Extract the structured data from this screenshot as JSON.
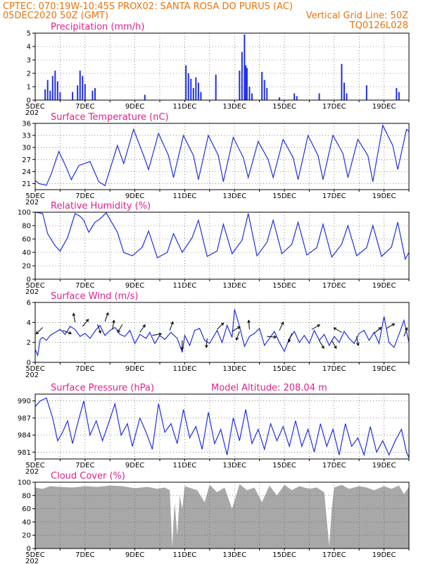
{
  "header": {
    "line1_left": "CPTEC:  070:19W-10:45S   PROX02: SANTA ROSA DO PURUS (AC)",
    "line2_left": "05DEC2020 50Z (GMT)",
    "line2_right": "Vertical Grid Line: 50Z",
    "line3_right": "TQ0126L028"
  },
  "colors": {
    "header": "#e8740c",
    "panel_title": "#e0208c",
    "series": "#2030e0",
    "cloud": "#a8a8a8"
  },
  "x_labels": [
    "5DEC",
    "7DEC",
    "9DEC",
    "11DEC",
    "13DEC",
    "15DEC",
    "17DEC",
    "19DEC"
  ],
  "x_prefix": "202",
  "chart_data": [
    {
      "type": "bar",
      "title": "Precipitation (mm/h)",
      "x_start_day": 5,
      "x_end_day": 20,
      "ylim": [
        0,
        5
      ],
      "yticks": [
        0,
        1,
        2,
        3,
        4,
        5
      ],
      "grid": true,
      "series": [
        {
          "x": [
            5.4,
            5.5,
            5.6,
            5.7,
            5.8,
            5.9,
            6.0,
            6.5,
            6.7,
            6.8,
            6.9,
            7.0,
            7.3,
            7.4,
            9.4,
            11.05,
            11.15,
            11.25,
            11.35,
            11.45,
            11.55,
            11.65,
            12.25,
            13.2,
            13.3,
            13.4,
            13.45,
            13.5,
            13.6,
            13.7,
            14.1,
            14.2,
            14.3,
            14.8,
            15.4,
            15.5,
            16.4,
            17.3,
            17.4,
            17.5,
            18.3,
            19.5,
            19.6
          ],
          "values": [
            0.8,
            1.5,
            0.7,
            1.8,
            2.2,
            1.4,
            0.6,
            0.6,
            1.1,
            2.2,
            1.8,
            1.2,
            0.7,
            0.9,
            0.4,
            2.6,
            2.0,
            1.6,
            0.9,
            1.7,
            1.3,
            0.6,
            1.9,
            2.2,
            3.6,
            4.9,
            2.6,
            2.4,
            1.0,
            0.5,
            2.1,
            1.5,
            0.9,
            0.2,
            0.5,
            0.3,
            0.5,
            2.7,
            1.3,
            0.5,
            1.1,
            0.9,
            0.6
          ]
        }
      ]
    },
    {
      "type": "line",
      "title": "Surface Temperature (nC)",
      "x_start_day": 5,
      "x_end_day": 20,
      "ylim": [
        19.5,
        36
      ],
      "yticks": [
        21,
        24,
        27,
        30,
        33,
        36
      ],
      "grid": true,
      "series": [
        {
          "x": [
            5.0,
            5.15,
            5.45,
            5.65,
            5.95,
            6.25,
            6.45,
            6.75,
            7.2,
            7.55,
            7.8,
            7.95,
            8.3,
            8.55,
            8.95,
            9.35,
            9.55,
            9.95,
            10.35,
            10.55,
            10.95,
            11.35,
            11.55,
            11.95,
            12.35,
            12.55,
            12.95,
            13.35,
            13.55,
            13.95,
            14.35,
            14.55,
            14.95,
            15.35,
            15.55,
            15.95,
            16.35,
            16.55,
            16.95,
            17.35,
            17.55,
            17.95,
            18.35,
            18.55,
            18.95,
            19.35,
            19.55,
            19.9,
            20.0
          ],
          "values": [
            21.8,
            21.0,
            20.6,
            23.5,
            29.0,
            25.0,
            22.0,
            25.5,
            26.5,
            21.5,
            20.5,
            23.5,
            30.5,
            26.0,
            34.5,
            28.0,
            24.5,
            33.5,
            28.0,
            22.5,
            33.0,
            28.0,
            22.0,
            33.0,
            28.0,
            21.5,
            32.5,
            27.5,
            22.5,
            31.5,
            27.0,
            22.5,
            32.0,
            27.5,
            22.0,
            33.0,
            28.0,
            22.0,
            33.0,
            28.5,
            22.5,
            32.0,
            28.0,
            21.5,
            35.5,
            30.5,
            24.5,
            34.5,
            34.0
          ]
        }
      ]
    },
    {
      "type": "line",
      "title": "Relative Humidity (%)",
      "x_start_day": 5,
      "x_end_day": 20,
      "ylim": [
        0,
        100
      ],
      "yticks": [
        0,
        20,
        40,
        60,
        80,
        100
      ],
      "grid": true,
      "series": [
        {
          "x": [
            5.0,
            5.15,
            5.3,
            5.5,
            5.8,
            6.0,
            6.3,
            6.6,
            6.8,
            6.95,
            7.15,
            7.4,
            7.6,
            7.85,
            8.3,
            8.55,
            8.9,
            9.3,
            9.55,
            9.9,
            10.3,
            10.55,
            10.9,
            11.3,
            11.55,
            11.9,
            12.3,
            12.55,
            12.9,
            13.3,
            13.55,
            13.9,
            14.3,
            14.55,
            14.9,
            15.3,
            15.55,
            15.9,
            16.3,
            16.55,
            16.9,
            17.3,
            17.55,
            17.9,
            18.3,
            18.55,
            18.9,
            19.3,
            19.55,
            19.85,
            20.0
          ],
          "values": [
            100,
            99,
            98,
            68,
            50,
            42,
            62,
            98,
            94,
            88,
            70,
            85,
            90,
            99,
            70,
            40,
            35,
            48,
            72,
            32,
            40,
            68,
            40,
            62,
            88,
            34,
            42,
            82,
            38,
            58,
            98,
            35,
            55,
            88,
            38,
            52,
            85,
            36,
            47,
            82,
            33,
            52,
            80,
            35,
            47,
            80,
            34,
            48,
            85,
            30,
            40
          ]
        }
      ]
    },
    {
      "type": "line",
      "title": "Surface Wind (m/s)",
      "x_start_day": 5,
      "x_end_day": 20,
      "ylim": [
        0,
        6
      ],
      "yticks": [
        0,
        2,
        4,
        6
      ],
      "grid": true,
      "series": [
        {
          "x": [
            5.0,
            5.1,
            5.2,
            5.3,
            5.45,
            5.6,
            5.8,
            6.0,
            6.2,
            6.4,
            6.6,
            6.8,
            7.0,
            7.2,
            7.45,
            7.6,
            7.8,
            8.0,
            8.2,
            8.4,
            8.6,
            8.8,
            9.0,
            9.2,
            9.45,
            9.6,
            9.8,
            10.0,
            10.2,
            10.45,
            10.7,
            10.9,
            11.0,
            11.2,
            11.4,
            11.6,
            11.8,
            12.0,
            12.3,
            12.5,
            12.7,
            12.9,
            13.0,
            13.2,
            13.4,
            13.6,
            13.8,
            14.0,
            14.2,
            14.4,
            14.6,
            14.8,
            15.0,
            15.2,
            15.4,
            15.6,
            15.8,
            16.0,
            16.2,
            16.4,
            16.6,
            16.8,
            17.0,
            17.2,
            17.4,
            17.6,
            17.8,
            18.0,
            18.2,
            18.4,
            18.6,
            18.8,
            19.0,
            19.2,
            19.4,
            19.6,
            19.8,
            20.0
          ],
          "values": [
            1.3,
            0.7,
            2.3,
            2.5,
            2.2,
            2.7,
            3.0,
            3.3,
            2.8,
            3.6,
            3.3,
            2.6,
            2.9,
            2.4,
            3.3,
            3.7,
            2.7,
            3.2,
            3.5,
            2.8,
            2.6,
            3.2,
            1.9,
            2.8,
            2.4,
            3.0,
            1.9,
            2.7,
            2.3,
            3.0,
            2.4,
            1.0,
            2.7,
            1.7,
            3.2,
            3.4,
            2.2,
            1.9,
            3.2,
            2.0,
            3.7,
            2.5,
            5.3,
            3.6,
            1.6,
            2.6,
            2.9,
            3.4,
            1.7,
            2.4,
            3.1,
            2.0,
            1.1,
            2.4,
            3.1,
            2.0,
            2.7,
            1.9,
            3.2,
            2.2,
            2.8,
            1.7,
            2.6,
            2.0,
            3.1,
            2.4,
            1.9,
            2.9,
            3.2,
            2.2,
            3.0,
            1.9,
            4.6,
            2.0,
            1.5,
            2.8,
            4.2,
            2.0
          ]
        }
      ],
      "arrows": [
        {
          "x": 5.3,
          "y": 3.5,
          "dir_deg": 225
        },
        {
          "x": 6.1,
          "y": 3.2,
          "dir_deg": 110
        },
        {
          "x": 6.6,
          "y": 4.0,
          "dir_deg": 350
        },
        {
          "x": 6.9,
          "y": 3.6,
          "dir_deg": 40
        },
        {
          "x": 7.5,
          "y": 3.8,
          "dir_deg": 160
        },
        {
          "x": 7.8,
          "y": 4.1,
          "dir_deg": 20
        },
        {
          "x": 8.1,
          "y": 3.3,
          "dir_deg": 10
        },
        {
          "x": 8.5,
          "y": 3.8,
          "dir_deg": 210
        },
        {
          "x": 9.2,
          "y": 3.0,
          "dir_deg": 35
        },
        {
          "x": 9.7,
          "y": 2.7,
          "dir_deg": 80
        },
        {
          "x": 10.4,
          "y": 3.2,
          "dir_deg": 20
        },
        {
          "x": 10.9,
          "y": 2.2,
          "dir_deg": 180
        },
        {
          "x": 11.9,
          "y": 2.4,
          "dir_deg": 185
        },
        {
          "x": 12.3,
          "y": 3.3,
          "dir_deg": 45
        },
        {
          "x": 12.9,
          "y": 3.1,
          "dir_deg": 60
        },
        {
          "x": 13.2,
          "y": 3.1,
          "dir_deg": 200
        },
        {
          "x": 13.6,
          "y": 3.3,
          "dir_deg": 355
        },
        {
          "x": 14.3,
          "y": 2.6,
          "dir_deg": 95
        },
        {
          "x": 14.8,
          "y": 3.2,
          "dir_deg": 25
        },
        {
          "x": 15.3,
          "y": 2.9,
          "dir_deg": 200
        },
        {
          "x": 16.1,
          "y": 3.3,
          "dir_deg": 60
        },
        {
          "x": 16.4,
          "y": 2.2,
          "dir_deg": 150
        },
        {
          "x": 16.9,
          "y": 2.2,
          "dir_deg": 150
        },
        {
          "x": 17.3,
          "y": 3.0,
          "dir_deg": 300
        },
        {
          "x": 17.9,
          "y": 2.6,
          "dir_deg": 170
        },
        {
          "x": 18.6,
          "y": 2.9,
          "dir_deg": 50
        },
        {
          "x": 19.1,
          "y": 3.4,
          "dir_deg": 60
        },
        {
          "x": 19.8,
          "y": 2.6,
          "dir_deg": 20
        }
      ]
    },
    {
      "type": "line",
      "title": "Surface Pressure (hPa)",
      "subtitle": "Model Altitude: 208.04 m",
      "x_start_day": 5,
      "x_end_day": 20,
      "ylim": [
        979.8,
        991.2
      ],
      "yticks": [
        981,
        984,
        987,
        990
      ],
      "grid": true,
      "series": [
        {
          "x": [
            5.0,
            5.2,
            5.45,
            5.7,
            5.9,
            6.1,
            6.3,
            6.5,
            6.7,
            6.95,
            7.2,
            7.45,
            7.7,
            7.9,
            8.2,
            8.45,
            8.7,
            8.9,
            9.2,
            9.45,
            9.7,
            9.95,
            10.2,
            10.45,
            10.7,
            10.95,
            11.2,
            11.45,
            11.7,
            11.95,
            12.2,
            12.45,
            12.7,
            12.95,
            13.2,
            13.45,
            13.7,
            13.95,
            14.2,
            14.45,
            14.7,
            14.95,
            15.2,
            15.45,
            15.7,
            15.95,
            16.2,
            16.45,
            16.7,
            16.95,
            17.2,
            17.45,
            17.7,
            17.95,
            18.2,
            18.45,
            18.7,
            18.95,
            19.2,
            19.45,
            19.7,
            19.9,
            20.0
          ],
          "values": [
            989.0,
            990.0,
            990.5,
            987.0,
            983.0,
            984.5,
            986.5,
            982.5,
            986.0,
            990.0,
            984.0,
            986.5,
            983.0,
            985.5,
            989.5,
            984.0,
            986.0,
            982.0,
            987.0,
            984.5,
            981.5,
            989.5,
            984.5,
            986.0,
            982.5,
            988.5,
            983.5,
            985.5,
            981.5,
            988.0,
            982.5,
            985.0,
            980.5,
            987.0,
            983.0,
            988.5,
            982.5,
            985.0,
            981.5,
            986.0,
            983.0,
            985.5,
            982.0,
            986.5,
            982.0,
            985.0,
            981.0,
            986.0,
            982.0,
            985.0,
            980.5,
            986.0,
            982.0,
            983.5,
            980.5,
            985.5,
            981.0,
            983.0,
            980.5,
            983.0,
            985.0,
            981.0,
            980.0
          ]
        }
      ]
    },
    {
      "type": "area",
      "title": "Cloud Cover (%)",
      "x_start_day": 5,
      "x_end_day": 20,
      "ylim": [
        0,
        100
      ],
      "yticks": [
        0,
        20,
        40,
        60,
        80,
        100
      ],
      "grid": true,
      "series": [
        {
          "x": [
            5.0,
            5.3,
            5.6,
            6.0,
            6.5,
            7.0,
            7.5,
            8.0,
            8.5,
            9.0,
            9.5,
            9.9,
            10.2,
            10.4,
            10.5,
            10.55,
            10.6,
            10.7,
            10.8,
            10.9,
            11.0,
            11.5,
            11.8,
            12.0,
            12.3,
            12.6,
            12.9,
            13.2,
            13.5,
            13.8,
            14.1,
            14.4,
            14.7,
            15.0,
            15.3,
            15.6,
            16.0,
            16.3,
            16.6,
            16.8,
            16.9,
            17.0,
            17.3,
            17.6,
            18.0,
            18.3,
            18.6,
            19.0,
            19.3,
            19.6,
            19.8,
            20.0
          ],
          "values": [
            92,
            90,
            94,
            93,
            92,
            94,
            93,
            95,
            94,
            91,
            93,
            90,
            92,
            88,
            2,
            40,
            70,
            20,
            80,
            60,
            94,
            88,
            70,
            96,
            85,
            92,
            60,
            97,
            88,
            92,
            70,
            95,
            80,
            96,
            88,
            94,
            90,
            92,
            85,
            4,
            60,
            92,
            96,
            90,
            94,
            92,
            88,
            94,
            90,
            95,
            82,
            93
          ]
        }
      ]
    }
  ]
}
